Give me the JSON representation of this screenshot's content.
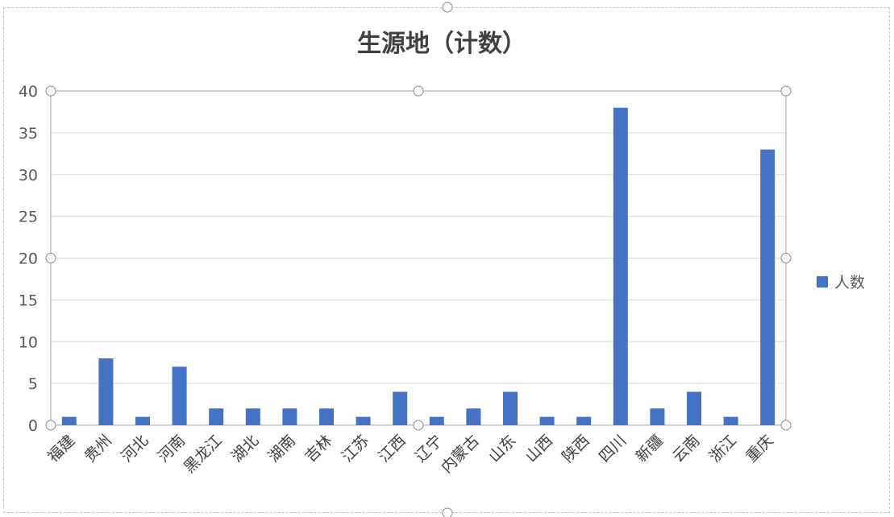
{
  "chart_data": {
    "type": "bar",
    "title": "生源地（计数）",
    "categories": [
      "福建",
      "贵州",
      "河北",
      "河南",
      "黑龙江",
      "湖北",
      "湖南",
      "吉林",
      "江苏",
      "江西",
      "辽宁",
      "内蒙古",
      "山东",
      "山西",
      "陕西",
      "四川",
      "新疆",
      "云南",
      "浙江",
      "重庆"
    ],
    "series": [
      {
        "name": "人数",
        "values": [
          1,
          8,
          1,
          7,
          2,
          2,
          2,
          2,
          1,
          4,
          1,
          2,
          4,
          1,
          1,
          38,
          2,
          4,
          1,
          33
        ]
      }
    ],
    "ylim": [
      0,
      40
    ],
    "yticks": [
      0,
      5,
      10,
      15,
      20,
      25,
      30,
      35,
      40
    ],
    "grid": true,
    "legend": "right",
    "colors": {
      "bar": "#4472C4",
      "grid": "#D9D9D9",
      "text": "#595959"
    }
  }
}
